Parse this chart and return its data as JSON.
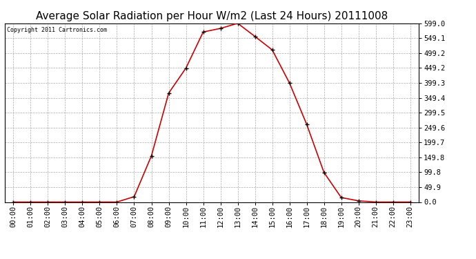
{
  "title": "Average Solar Radiation per Hour W/m2 (Last 24 Hours) 20111008",
  "copyright": "Copyright 2011 Cartronics.com",
  "hours": [
    "00:00",
    "01:00",
    "02:00",
    "03:00",
    "04:00",
    "05:00",
    "06:00",
    "07:00",
    "08:00",
    "09:00",
    "10:00",
    "11:00",
    "12:00",
    "13:00",
    "14:00",
    "15:00",
    "16:00",
    "17:00",
    "18:00",
    "19:00",
    "20:00",
    "21:00",
    "22:00",
    "23:00"
  ],
  "values": [
    0.0,
    0.0,
    0.0,
    0.0,
    0.0,
    0.0,
    0.0,
    18.0,
    155.0,
    365.0,
    449.0,
    570.0,
    582.0,
    599.0,
    555.0,
    510.0,
    399.0,
    260.0,
    99.0,
    15.0,
    4.0,
    0.0,
    0.0,
    0.0
  ],
  "line_color": "#cc0000",
  "marker_color": "#000000",
  "bg_color": "#ffffff",
  "grid_color": "#aaaaaa",
  "ymin": 0.0,
  "ymax": 599.0,
  "ytick_labels": [
    "0.0",
    "49.9",
    "99.8",
    "149.8",
    "199.7",
    "249.6",
    "299.5",
    "349.4",
    "399.3",
    "449.2",
    "499.2",
    "549.1",
    "599.0"
  ],
  "ytick_values": [
    0.0,
    49.9,
    99.8,
    149.8,
    199.7,
    249.6,
    299.5,
    349.4,
    399.3,
    449.2,
    499.2,
    549.1,
    599.0
  ],
  "title_fontsize": 11,
  "copyright_fontsize": 6,
  "tick_fontsize": 7.5
}
